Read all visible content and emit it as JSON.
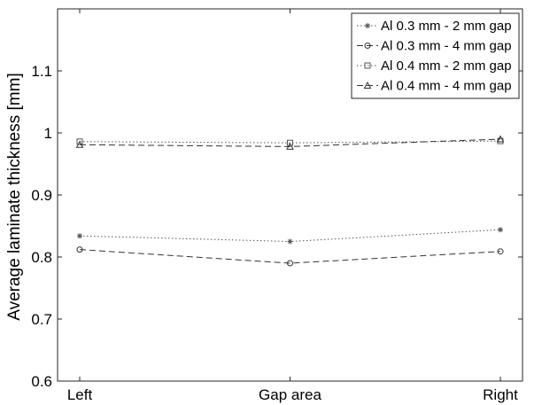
{
  "chart_data": {
    "type": "line",
    "title": "",
    "xlabel": "",
    "ylabel": "Average laminate thickness [mm]",
    "categories": [
      "Left",
      "Gap area",
      "Right"
    ],
    "ylim": [
      0.6,
      1.2
    ],
    "yticks": [
      "0.6",
      "0.7",
      "0.8",
      "0.9",
      "1",
      "1.1"
    ],
    "grid": false,
    "legend_position": "top-right",
    "series": [
      {
        "name": "Al 0.3 mm - 2 mm gap",
        "values": [
          0.834,
          0.825,
          0.844
        ],
        "marker": "asterisk",
        "dash": "dotted",
        "color": "#555555"
      },
      {
        "name": "Al 0.3 mm - 4 mm gap",
        "values": [
          0.812,
          0.79,
          0.809
        ],
        "marker": "circle",
        "dash": "dashed",
        "color": "#333333"
      },
      {
        "name": "Al 0.4 mm - 2 mm gap",
        "values": [
          0.986,
          0.984,
          0.987
        ],
        "marker": "square",
        "dash": "dotted",
        "color": "#555555"
      },
      {
        "name": "Al 0.4 mm - 4 mm gap",
        "values": [
          0.981,
          0.978,
          0.99
        ],
        "marker": "triangle",
        "dash": "dashed",
        "color": "#333333"
      }
    ]
  }
}
